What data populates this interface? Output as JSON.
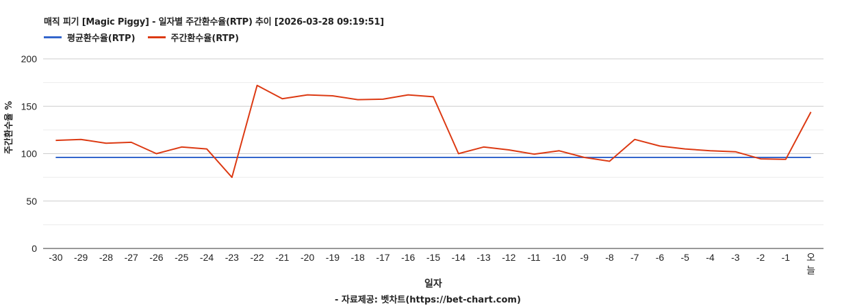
{
  "chart_data": {
    "type": "line",
    "title": "매직 피기 [Magic Piggy] - 일자별 주간환수율(RTP) 추이 [2026-03-28 09:19:51]",
    "xlabel": "일자",
    "ylabel": "주간환수율 %",
    "ylim": [
      0,
      200
    ],
    "yticks": [
      0,
      50,
      100,
      150,
      200
    ],
    "grid": true,
    "legend_position": "top-left",
    "categories": [
      "-30",
      "-29",
      "-28",
      "-27",
      "-26",
      "-25",
      "-24",
      "-23",
      "-22",
      "-21",
      "-20",
      "-19",
      "-18",
      "-17",
      "-16",
      "-15",
      "-14",
      "-13",
      "-12",
      "-11",
      "-10",
      "-9",
      "-8",
      "-7",
      "-6",
      "-5",
      "-4",
      "-3",
      "-2",
      "-1",
      "오늘"
    ],
    "series": [
      {
        "name": "평균환수율(RTP)",
        "color": "#3366cc",
        "values": [
          96,
          96,
          96,
          96,
          96,
          96,
          96,
          96,
          96,
          96,
          96,
          96,
          96,
          96,
          96,
          96,
          96,
          96,
          96,
          96,
          96,
          96,
          96,
          96,
          96,
          96,
          96,
          96,
          96,
          96,
          96
        ]
      },
      {
        "name": "주간환수율(RTP)",
        "color": "#dc3912",
        "values": [
          114,
          115,
          111,
          112,
          100,
          107,
          105,
          75,
          172,
          158,
          162,
          161,
          157,
          157.5,
          162,
          160,
          100,
          107,
          104,
          99.5,
          103,
          96,
          92,
          115,
          108,
          105,
          103,
          102,
          94.5,
          94,
          144
        ]
      }
    ],
    "source": "- 자료제공: 벳차트(https://bet-chart.com)"
  }
}
